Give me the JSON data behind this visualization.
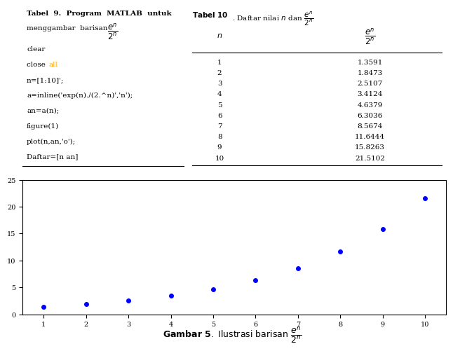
{
  "n": [
    1,
    2,
    3,
    4,
    5,
    6,
    7,
    8,
    9,
    10
  ],
  "an": [
    1.3591,
    1.8473,
    2.5107,
    3.4124,
    4.6379,
    6.3036,
    8.5674,
    11.6444,
    15.8263,
    21.5102
  ],
  "plot_color": "#0000FF",
  "marker": "o",
  "marker_size": 4,
  "bg_color": "#FFFFFF",
  "code_lines": [
    "clear",
    "close all",
    "n=[1:10]';",
    "a=inline('exp(n)./(2.^n)','n');",
    "an=a(n);",
    "figure(1)",
    "plot(n,an,'o');",
    "Daftar=[n an]"
  ],
  "xlim": [
    0.5,
    10.5
  ],
  "ylim": [
    0,
    25
  ],
  "yticks": [
    0,
    5,
    10,
    15,
    20,
    25
  ],
  "xticks": [
    1,
    2,
    3,
    4,
    5,
    6,
    7,
    8,
    9,
    10
  ]
}
